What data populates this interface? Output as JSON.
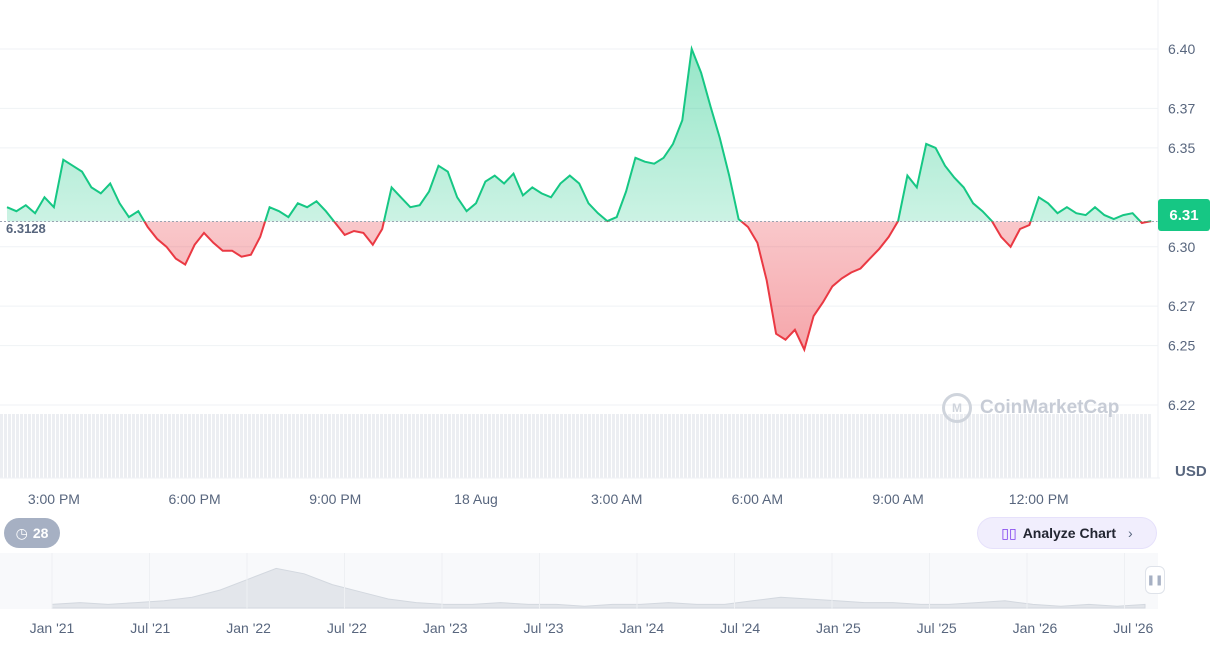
{
  "chart_data": {
    "type": "area",
    "currency": "USD",
    "reference_value": "6.3128",
    "current_price_label": "6.31",
    "y_ticks": [
      "6.40",
      "6.37",
      "6.35",
      "6.30",
      "6.27",
      "6.25",
      "6.22"
    ],
    "y_tick_values": [
      6.4,
      6.37,
      6.35,
      6.3,
      6.27,
      6.25,
      6.22
    ],
    "ylim": [
      6.21,
      6.43
    ],
    "reference_numeric": 6.3128,
    "x_ticks": [
      "3:00 PM",
      "6:00 PM",
      "9:00 PM",
      "18 Aug",
      "3:00 AM",
      "6:00 AM",
      "9:00 AM",
      "12:00 PM"
    ],
    "x_tick_hours": [
      0,
      3,
      6,
      9,
      12,
      15,
      18,
      21
    ],
    "x_range_hours": [
      -1.0,
      23.5
    ],
    "colors": {
      "up": "#16c784",
      "down": "#ea3943"
    },
    "series": [
      {
        "x": [
          -1.0,
          -0.8,
          -0.6,
          -0.4,
          -0.2,
          0.0,
          0.2,
          0.4,
          0.6,
          0.8,
          1.0,
          1.2,
          1.4,
          1.6,
          1.8,
          2.0,
          2.2,
          2.4,
          2.6,
          2.8,
          3.0,
          3.2,
          3.4,
          3.6,
          3.8,
          4.0,
          4.2,
          4.4,
          4.6,
          4.8,
          5.0,
          5.2,
          5.4,
          5.6,
          5.8,
          6.0,
          6.2,
          6.4,
          6.6,
          6.8,
          7.0,
          7.2,
          7.4,
          7.6,
          7.8,
          8.0,
          8.2,
          8.4,
          8.6,
          8.8,
          9.0,
          9.2,
          9.4,
          9.6,
          9.8,
          10.0,
          10.2,
          10.4,
          10.6,
          10.8,
          11.0,
          11.2,
          11.4,
          11.6,
          11.8,
          12.0,
          12.2,
          12.4,
          12.6,
          12.8,
          13.0,
          13.2,
          13.4,
          13.6,
          13.8,
          14.0,
          14.2,
          14.4,
          14.6,
          14.8,
          15.0,
          15.2,
          15.4,
          15.6,
          15.8,
          16.0,
          16.2,
          16.4,
          16.6,
          16.8,
          17.0,
          17.2,
          17.4,
          17.6,
          17.8,
          18.0,
          18.2,
          18.4,
          18.6,
          18.8,
          19.0,
          19.2,
          19.4,
          19.6,
          19.8,
          20.0,
          20.2,
          20.4,
          20.6,
          20.8,
          21.0,
          21.2,
          21.4,
          21.6,
          21.8,
          22.0,
          22.2,
          22.4,
          22.6,
          22.8,
          23.0,
          23.2,
          23.4
        ],
        "values": [
          6.32,
          6.318,
          6.321,
          6.317,
          6.325,
          6.32,
          6.344,
          6.341,
          6.338,
          6.33,
          6.327,
          6.332,
          6.322,
          6.315,
          6.318,
          6.31,
          6.304,
          6.3,
          6.294,
          6.291,
          6.301,
          6.307,
          6.302,
          6.298,
          6.298,
          6.295,
          6.296,
          6.305,
          6.32,
          6.318,
          6.315,
          6.322,
          6.32,
          6.323,
          6.318,
          6.312,
          6.306,
          6.308,
          6.307,
          6.301,
          6.309,
          6.33,
          6.325,
          6.32,
          6.321,
          6.328,
          6.341,
          6.338,
          6.325,
          6.318,
          6.322,
          6.333,
          6.336,
          6.332,
          6.337,
          6.326,
          6.33,
          6.327,
          6.325,
          6.332,
          6.336,
          6.332,
          6.322,
          6.317,
          6.313,
          6.315,
          6.328,
          6.345,
          6.343,
          6.342,
          6.345,
          6.352,
          6.364,
          6.4,
          6.388,
          6.371,
          6.355,
          6.336,
          6.314,
          6.31,
          6.302,
          6.283,
          6.256,
          6.253,
          6.258,
          6.248,
          6.265,
          6.272,
          6.28,
          6.284,
          6.287,
          6.289,
          6.294,
          6.299,
          6.305,
          6.313,
          6.336,
          6.33,
          6.352,
          6.35,
          6.341,
          6.335,
          6.33,
          6.322,
          6.318,
          6.313,
          6.305,
          6.3,
          6.309,
          6.311,
          6.325,
          6.322,
          6.317,
          6.32,
          6.317,
          6.316,
          6.32,
          6.316,
          6.314,
          6.316,
          6.317,
          6.312,
          6.313
        ]
      }
    ]
  },
  "overview": {
    "x_ticks": [
      "Jan '21",
      "Jul '21",
      "Jan '22",
      "Jul '22",
      "Jan '23",
      "Jul '23",
      "Jan '24",
      "Jul '24",
      "Jan '25",
      "Jul '25",
      "Jan '26",
      "Jul '26"
    ],
    "values": [
      2,
      3,
      2,
      3,
      4,
      6,
      10,
      16,
      22,
      19,
      13,
      9,
      5,
      3,
      2,
      2,
      3,
      2,
      2,
      1,
      2,
      2,
      3,
      2,
      2,
      4,
      6,
      5,
      4,
      3,
      3,
      2,
      2,
      3,
      4,
      2,
      1,
      2,
      1,
      2
    ]
  },
  "history_count": "28",
  "analyze_label": "Analyze Chart",
  "watermark": "CoinMarketCap",
  "usd_label": "USD"
}
